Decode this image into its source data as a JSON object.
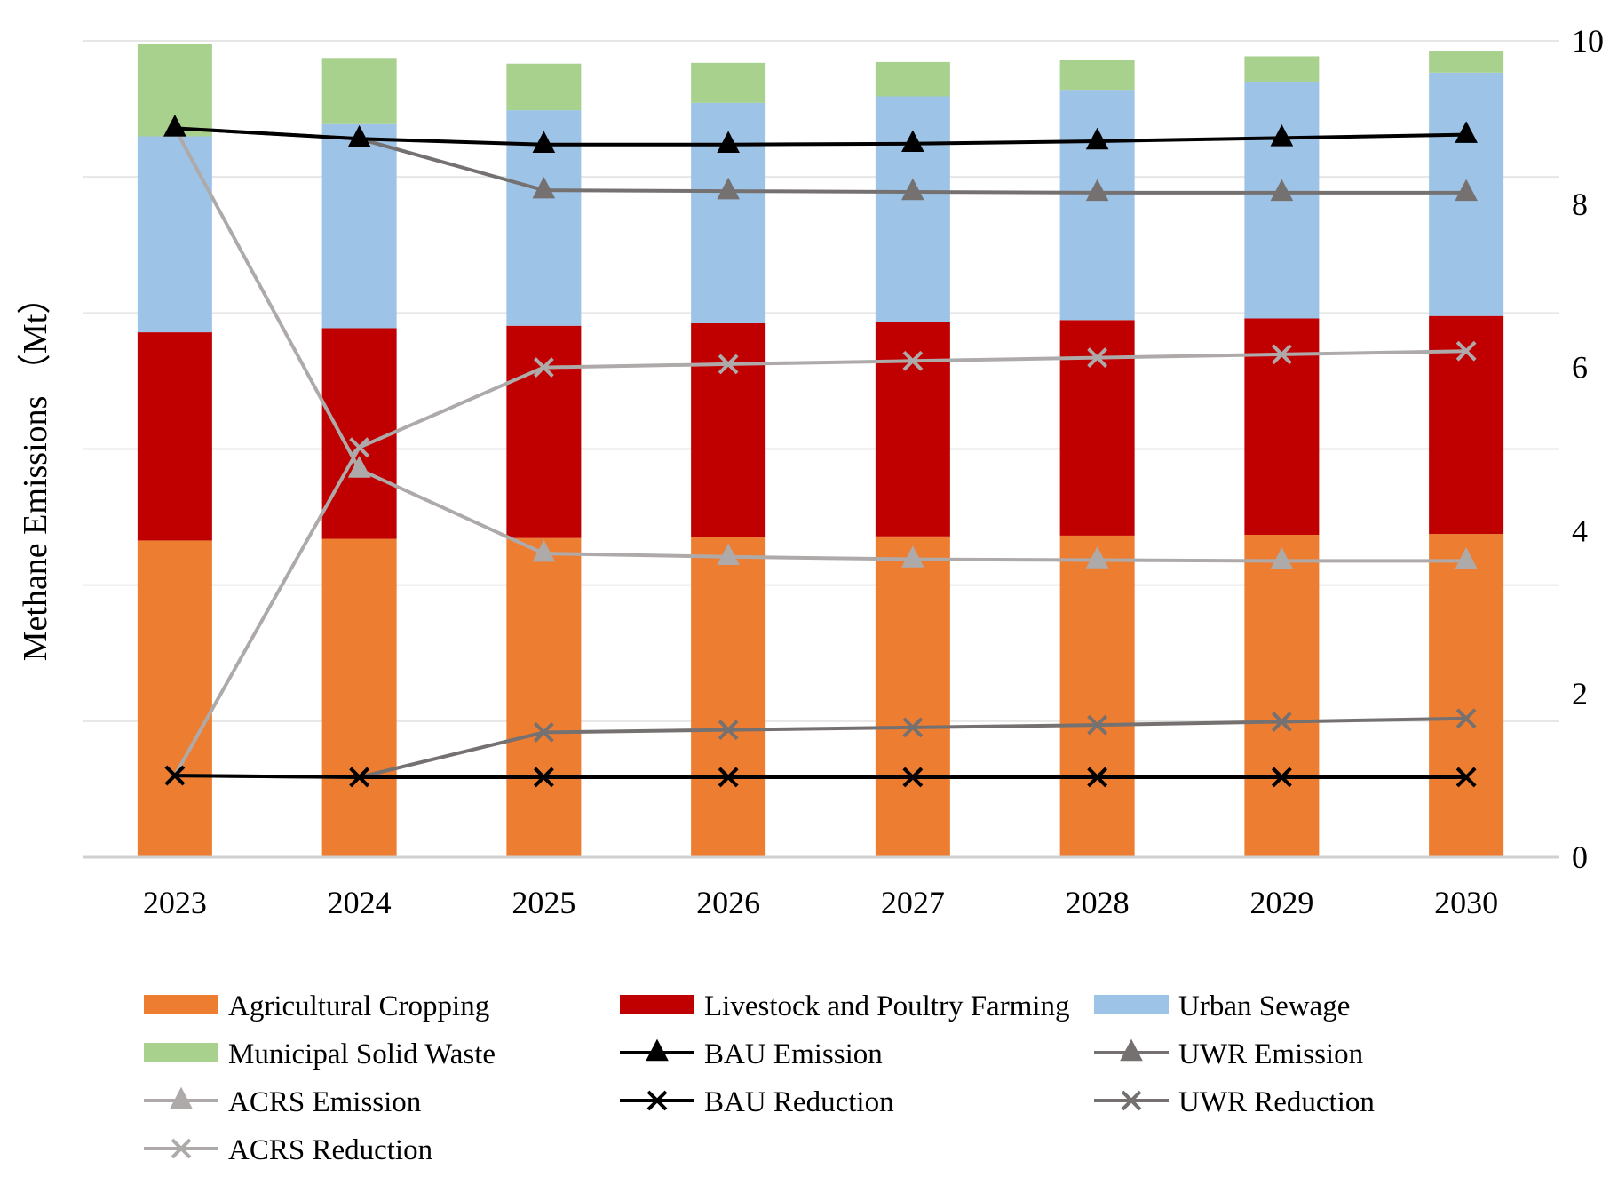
{
  "chart_data": {
    "type": "bar",
    "stacked": true,
    "categories": [
      "2023",
      "2024",
      "2025",
      "2026",
      "2027",
      "2028",
      "2029",
      "2030"
    ],
    "ylabel": "Methane Emissions （Mt）",
    "y_right_ticks": [
      "0",
      "2",
      "4",
      "6",
      "8",
      "10"
    ],
    "ylim": [
      0,
      10
    ],
    "grid": true,
    "legend_position": "bottom",
    "bar_series": [
      {
        "name": "Agricultural Cropping",
        "color": "#ED7D31",
        "values": [
          3.88,
          3.9,
          3.91,
          3.92,
          3.93,
          3.94,
          3.95,
          3.96
        ]
      },
      {
        "name": "Livestock and Poultry Farming",
        "color": "#C00000",
        "values": [
          2.55,
          2.58,
          2.6,
          2.62,
          2.63,
          2.64,
          2.65,
          2.67
        ]
      },
      {
        "name": "Urban Sewage",
        "color": "#9DC3E6",
        "values": [
          2.4,
          2.5,
          2.64,
          2.7,
          2.76,
          2.82,
          2.9,
          2.98
        ]
      },
      {
        "name": "Municipal Solid Waste",
        "color": "#A9D18E",
        "values": [
          1.13,
          0.81,
          0.57,
          0.49,
          0.42,
          0.37,
          0.31,
          0.27
        ]
      }
    ],
    "line_series": [
      {
        "name": "BAU Emission",
        "color": "#000000",
        "marker": "triangle",
        "values": [
          8.93,
          8.8,
          8.73,
          8.73,
          8.74,
          8.77,
          8.81,
          8.85
        ]
      },
      {
        "name": "UWR Emission",
        "color": "#767171",
        "marker": "triangle",
        "values": [
          8.93,
          8.8,
          8.17,
          8.16,
          8.15,
          8.14,
          8.14,
          8.14
        ]
      },
      {
        "name": "ACRS Emission",
        "color": "#AEAAAA",
        "marker": "triangle",
        "values": [
          8.93,
          4.75,
          3.72,
          3.68,
          3.65,
          3.64,
          3.63,
          3.63
        ]
      },
      {
        "name": "BAU Reduction",
        "color": "#000000",
        "marker": "x",
        "values": [
          1.0,
          0.98,
          0.98,
          0.98,
          0.98,
          0.98,
          0.98,
          0.98
        ]
      },
      {
        "name": "UWR Reduction",
        "color": "#767171",
        "marker": "x",
        "values": [
          1.0,
          0.98,
          1.53,
          1.56,
          1.59,
          1.62,
          1.66,
          1.7
        ]
      },
      {
        "name": "ACRS Reduction",
        "color": "#AEAAAA",
        "marker": "x",
        "values": [
          1.0,
          5.02,
          6.0,
          6.04,
          6.08,
          6.12,
          6.16,
          6.2
        ]
      }
    ],
    "legend": [
      "Agricultural Cropping",
      "Livestock and Poultry Farming",
      "Urban Sewage",
      "Municipal Solid Waste",
      "BAU Emission",
      "UWR Emission",
      "ACRS Emission",
      "BAU Reduction",
      "UWR Reduction",
      "ACRS Reduction"
    ]
  }
}
